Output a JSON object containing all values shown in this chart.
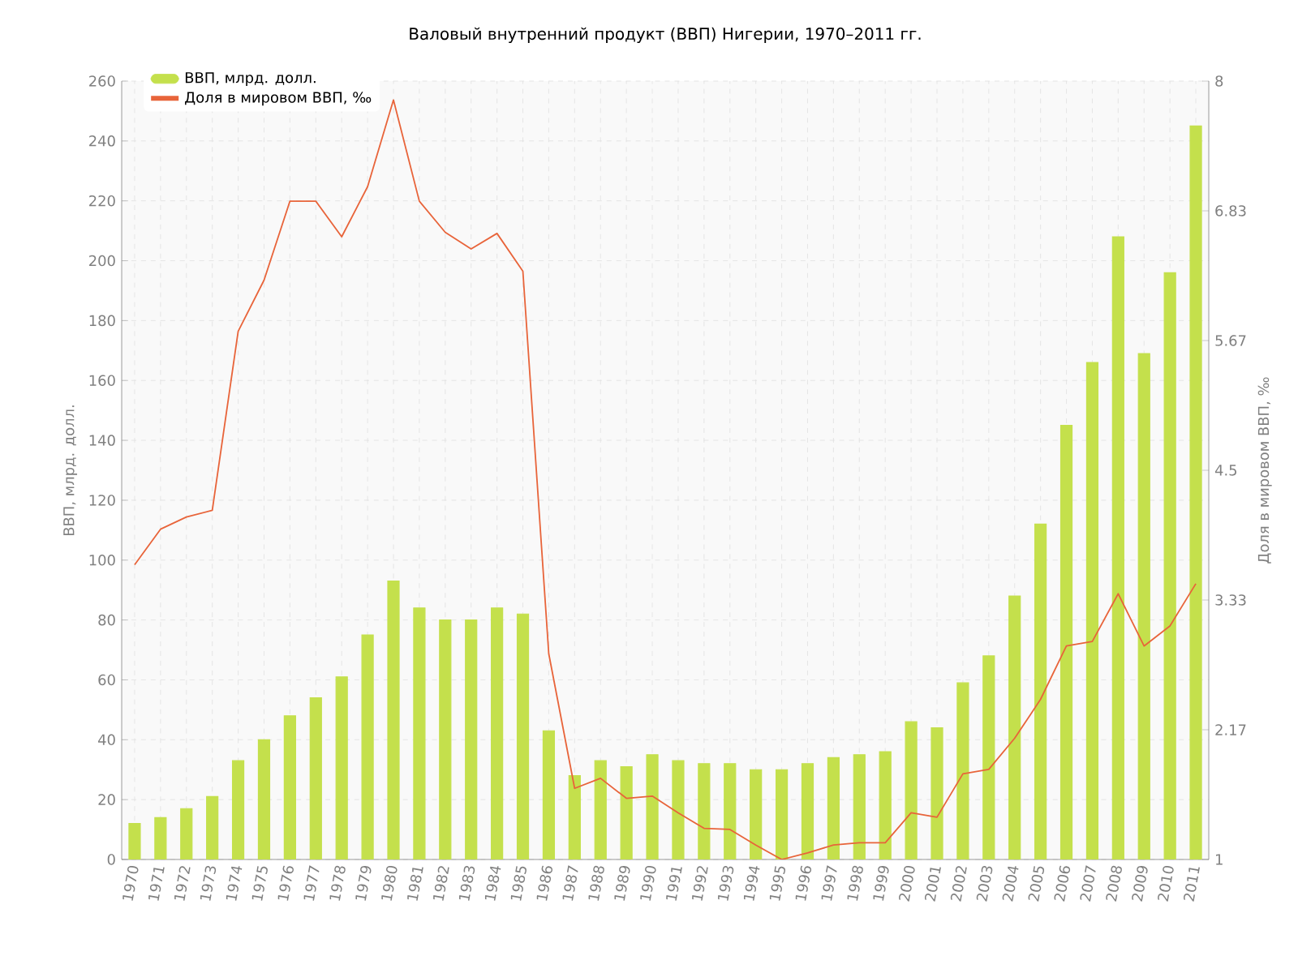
{
  "chart_data": {
    "type": "bar",
    "title": "Валовый внутренний продукт (ВВП) Нигерии, 1970–2011 гг.",
    "ylabel": "ВВП, млрд. долл.",
    "y2label": "Доля в мировом ВВП, ‰",
    "categories": [
      "1970",
      "1971",
      "1972",
      "1973",
      "1974",
      "1975",
      "1976",
      "1977",
      "1978",
      "1979",
      "1980",
      "1981",
      "1982",
      "1983",
      "1984",
      "1985",
      "1986",
      "1987",
      "1988",
      "1989",
      "1990",
      "1991",
      "1992",
      "1993",
      "1994",
      "1995",
      "1996",
      "1997",
      "1998",
      "1999",
      "2000",
      "2001",
      "2002",
      "2003",
      "2004",
      "2005",
      "2006",
      "2007",
      "2008",
      "2009",
      "2010",
      "2011"
    ],
    "series": [
      {
        "name": "ВВП, млрд. долл.",
        "color": "#c4e04c",
        "values": [
          12,
          14,
          17,
          21,
          33,
          40,
          48,
          54,
          61,
          75,
          93,
          84,
          80,
          80,
          84,
          82,
          43,
          28,
          33,
          31,
          35,
          33,
          32,
          32,
          30,
          30,
          32,
          34,
          35,
          36,
          46,
          44,
          59,
          68,
          88,
          112,
          145,
          166,
          208,
          169,
          196,
          245
        ]
      },
      {
        "name": "Доля в мировом ВВП, ‰",
        "type": "line",
        "axis": "y2",
        "color": "#e8643a",
        "values": [
          3.65,
          3.97,
          4.08,
          4.14,
          5.75,
          6.21,
          6.92,
          6.92,
          6.6,
          7.05,
          7.83,
          6.92,
          6.64,
          6.49,
          6.63,
          6.29,
          2.85,
          1.64,
          1.73,
          1.55,
          1.57,
          1.42,
          1.28,
          1.27,
          1.13,
          1.0,
          1.06,
          1.13,
          1.15,
          1.15,
          1.42,
          1.38,
          1.77,
          1.81,
          2.09,
          2.44,
          2.92,
          2.96,
          3.39,
          2.92,
          3.1,
          3.48
        ]
      }
    ],
    "ylim": [
      0,
      260
    ],
    "yticks": [
      0,
      20,
      40,
      60,
      80,
      100,
      120,
      140,
      160,
      180,
      200,
      220,
      240,
      260
    ],
    "y2lim": [
      1,
      8
    ],
    "y2ticks": [
      1,
      {
        "value": 2.1667,
        "label": "2.17"
      },
      {
        "value": 3.3333,
        "label": "3.33"
      },
      4.5,
      {
        "value": 5.6667,
        "label": "5.67"
      },
      {
        "value": 6.8333,
        "label": "6.83"
      },
      8
    ],
    "grid": true,
    "legend": "top left",
    "marker": "none",
    "line_style": "solid"
  }
}
